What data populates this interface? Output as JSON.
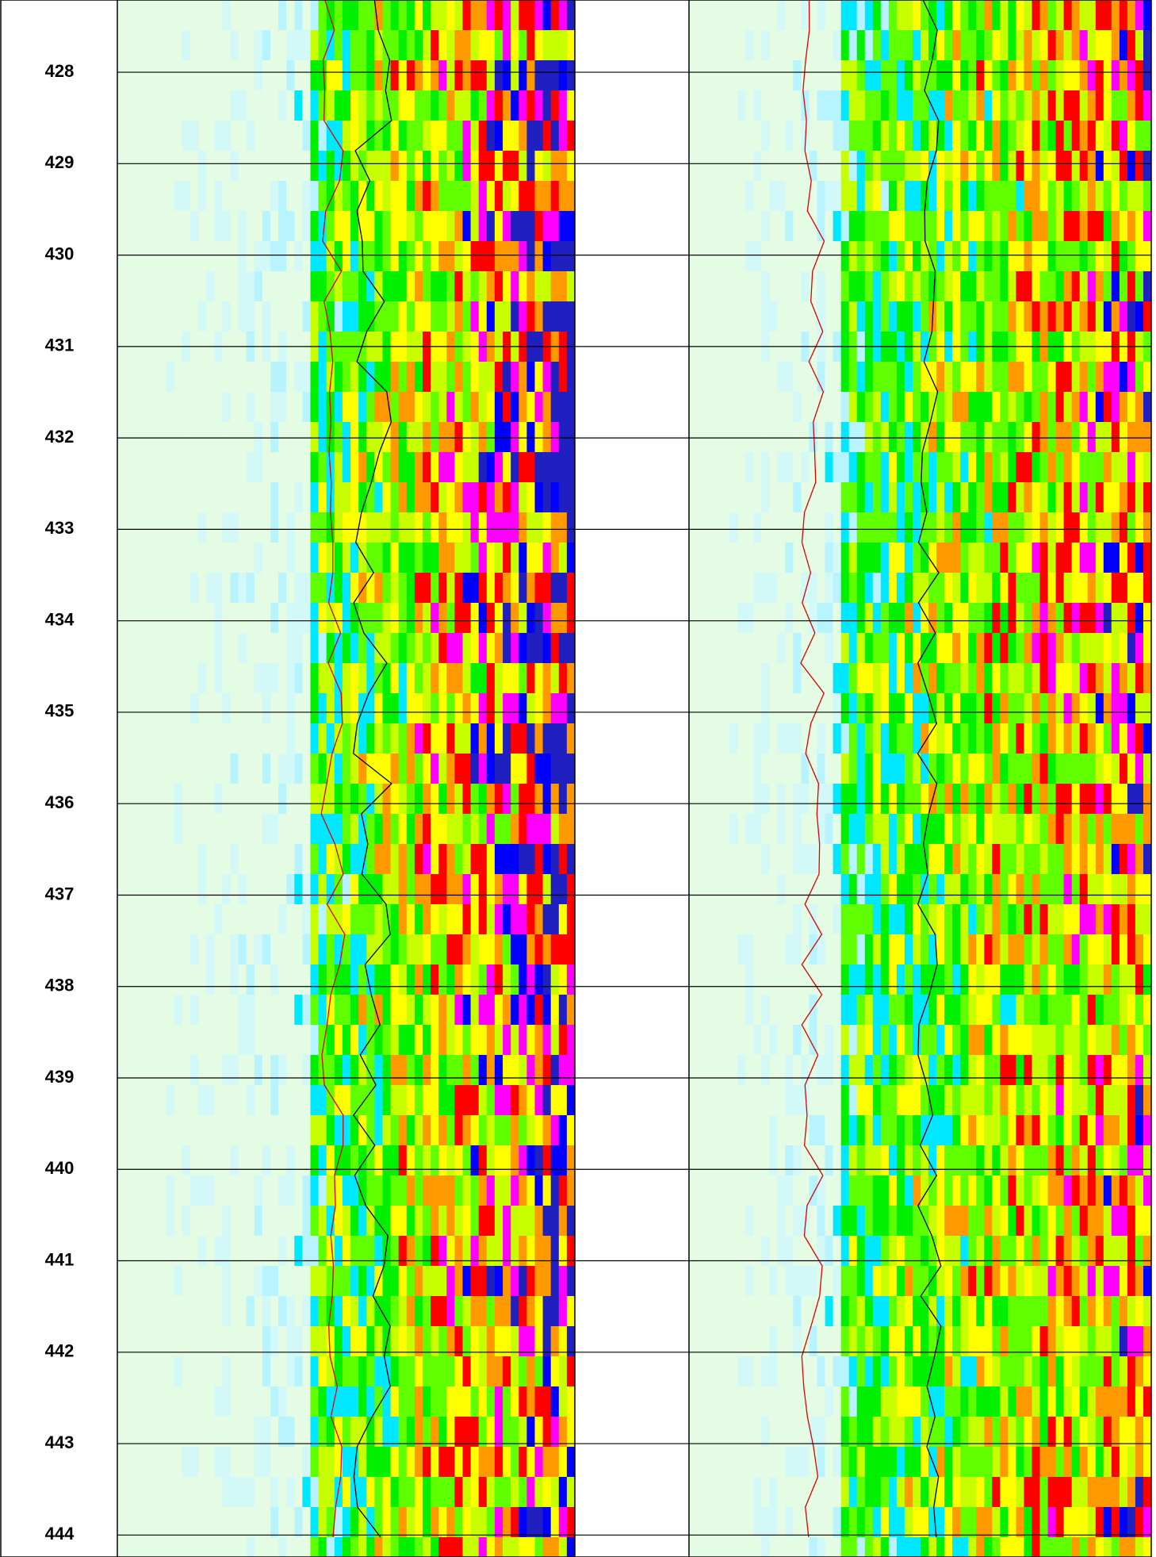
{
  "chart_data": {
    "type": "well-log",
    "ylim": [
      427.21,
      444.24
    ],
    "yticks": [
      428,
      429,
      430,
      431,
      432,
      433,
      434,
      435,
      436,
      437,
      438,
      439,
      440,
      441,
      442,
      443,
      444
    ],
    "grid": true
  }
}
